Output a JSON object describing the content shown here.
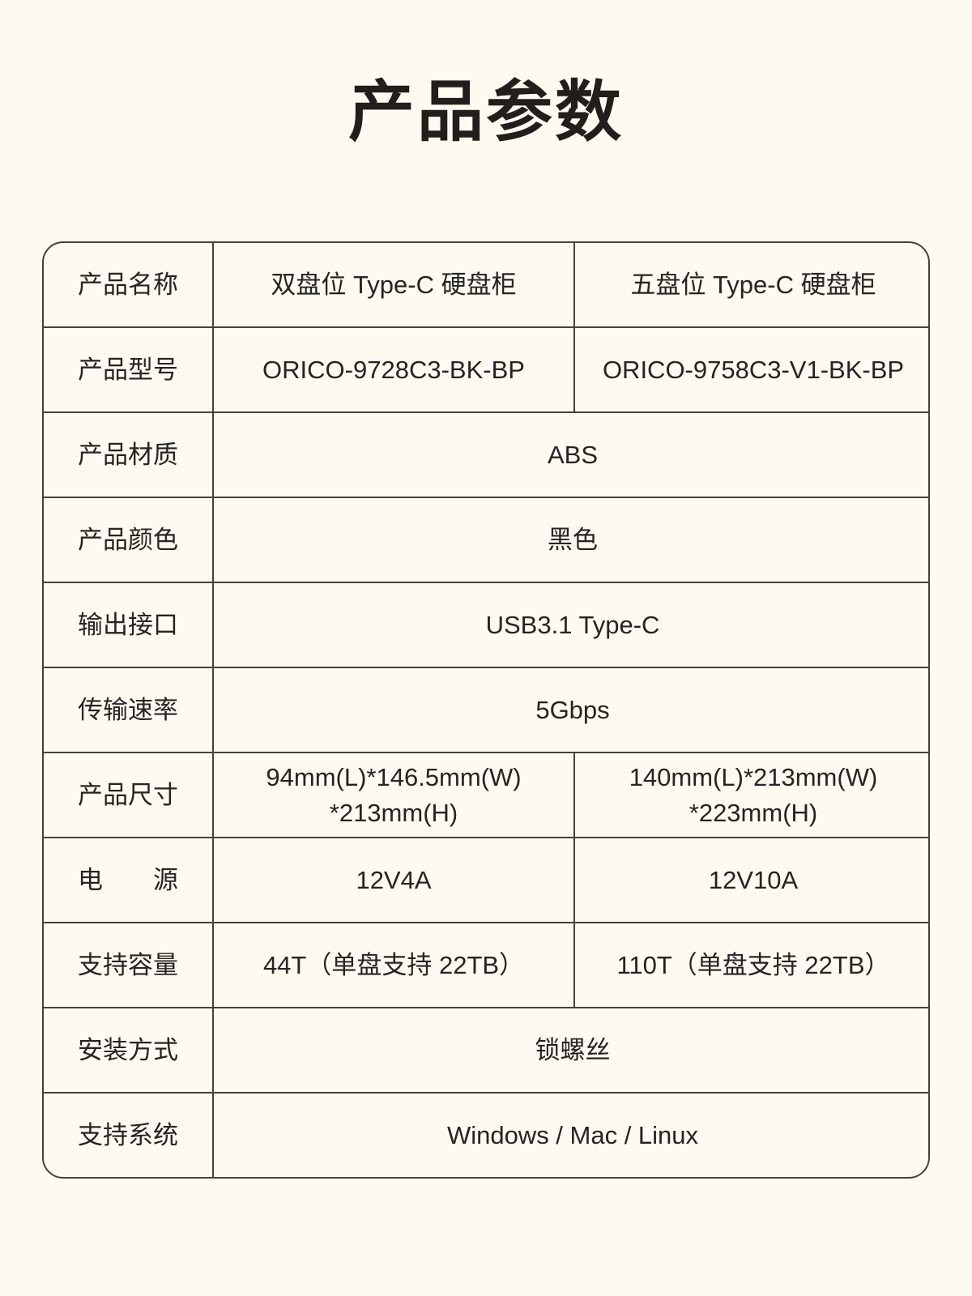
{
  "title": "产品参数",
  "colors": {
    "background": "#fcfaf1",
    "border": "#45423b",
    "text": "#262422",
    "title_text": "#211f1c"
  },
  "table": {
    "rows": [
      {
        "label": "产品名称",
        "values": [
          "双盘位 Type-C 硬盘柜",
          "五盘位 Type-C 硬盘柜"
        ]
      },
      {
        "label": "产品型号",
        "values": [
          "ORICO-9728C3-BK-BP",
          "ORICO-9758C3-V1-BK-BP"
        ]
      },
      {
        "label": "产品材质",
        "values": [
          "ABS"
        ]
      },
      {
        "label": "产品颜色",
        "values": [
          "黑色"
        ]
      },
      {
        "label": "输出接口",
        "values": [
          "USB3.1 Type-C"
        ]
      },
      {
        "label": "传输速率",
        "values": [
          "5Gbps"
        ]
      },
      {
        "label": "产品尺寸",
        "values": [
          "94mm(L)*146.5mm(W)\n*213mm(H)",
          "140mm(L)*213mm(W)\n*223mm(H)"
        ]
      },
      {
        "label": "电　　源",
        "values": [
          "12V4A",
          "12V10A"
        ]
      },
      {
        "label": "支持容量",
        "values": [
          "44T（单盘支持 22TB）",
          "110T（单盘支持 22TB）"
        ]
      },
      {
        "label": "安装方式",
        "values": [
          "锁螺丝"
        ]
      },
      {
        "label": "支持系统",
        "values": [
          "Windows / Mac / Linux"
        ]
      }
    ]
  }
}
